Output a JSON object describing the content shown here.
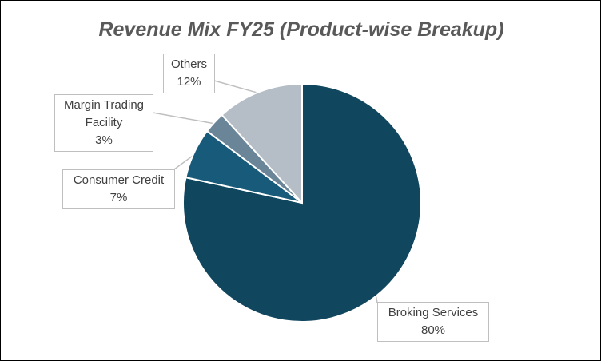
{
  "chart_data": {
    "type": "pie",
    "title": "Revenue Mix FY25 (Product-wise Breakup)",
    "categories": [
      "Broking Services",
      "Consumer Credit",
      "Margin Trading Facility",
      "Others"
    ],
    "values": [
      80,
      7,
      3,
      12
    ],
    "value_labels": [
      "80%",
      "7%",
      "3%",
      "12%"
    ],
    "colors": [
      "#10475f",
      "#175a79",
      "#6a8597",
      "#b5bdc7"
    ]
  }
}
